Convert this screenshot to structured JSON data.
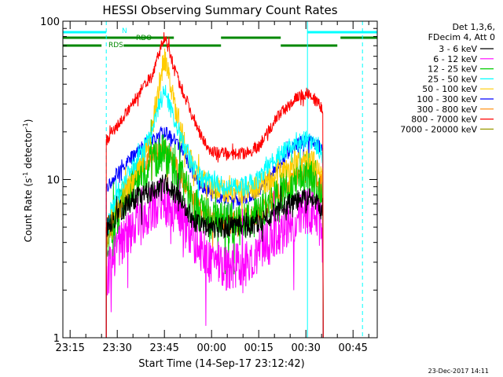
{
  "chart_data": {
    "type": "line",
    "title": "HESSI Observing Summary Count Rates",
    "xlabel": "Start Time (14-Sep-17 23:12:42)",
    "ylabel_main": "Count Rate (s",
    "ylabel_sup": "-1",
    "ylabel_mid": " detector",
    "ylabel_end": ")",
    "y_scale": "log",
    "ylim": [
      1,
      100
    ],
    "y_ticks": [
      {
        "value": 1,
        "label": "1"
      },
      {
        "value": 10,
        "label": "10"
      },
      {
        "value": 100,
        "label": "100"
      }
    ],
    "x_ticks_minutes": [
      {
        "t": -45,
        "label": "23:15"
      },
      {
        "t": -30,
        "label": "23:30"
      },
      {
        "t": -15,
        "label": "23:45"
      },
      {
        "t": 0,
        "label": "00:00"
      },
      {
        "t": 15,
        "label": "00:15"
      },
      {
        "t": 30,
        "label": "00:30"
      },
      {
        "t": 45,
        "label": "00:45"
      }
    ],
    "xlim_minutes": [
      -47.3,
      52.7
    ],
    "data_start_minutes": -33.5,
    "data_end_minutes": 35.5,
    "legend_header": [
      "Det 1,3,6,",
      "FDecim 4, Att 0"
    ],
    "legend_placement": "right",
    "series": [
      {
        "name": "3 - 6 keV",
        "color": "#000000",
        "points": [
          [
            -33,
            5
          ],
          [
            -30,
            6
          ],
          [
            -25,
            7.5
          ],
          [
            -22,
            8
          ],
          [
            -19,
            8.5
          ],
          [
            -17,
            9
          ],
          [
            -15,
            9.5
          ],
          [
            -12,
            8
          ],
          [
            -9,
            7
          ],
          [
            -6,
            5.5
          ],
          [
            -3,
            5.2
          ],
          [
            0,
            5
          ],
          [
            5,
            5
          ],
          [
            10,
            5
          ],
          [
            15,
            5.3
          ],
          [
            18,
            5.8
          ],
          [
            21,
            6.2
          ],
          [
            25,
            7
          ],
          [
            28,
            7.5
          ],
          [
            31,
            7.6
          ],
          [
            34,
            7
          ],
          [
            35.5,
            6.5
          ]
        ]
      },
      {
        "name": "6 - 12 keV",
        "color": "#ff00ff",
        "points": [
          [
            -33,
            2.5
          ],
          [
            -30,
            3.5
          ],
          [
            -25,
            5
          ],
          [
            -22,
            5.8
          ],
          [
            -19,
            6.5
          ],
          [
            -17,
            7
          ],
          [
            -15,
            7.3
          ],
          [
            -12,
            6.5
          ],
          [
            -9,
            5.5
          ],
          [
            -6,
            4.2
          ],
          [
            -3,
            3.5
          ],
          [
            0,
            3
          ],
          [
            5,
            2.8
          ],
          [
            10,
            2.8
          ],
          [
            15,
            3.5
          ],
          [
            18,
            4
          ],
          [
            21,
            4.5
          ],
          [
            25,
            5.2
          ],
          [
            28,
            6
          ],
          [
            31,
            6.3
          ],
          [
            34,
            5.5
          ],
          [
            35.5,
            5
          ]
        ]
      },
      {
        "name": "12 - 25 keV",
        "color": "#00cc00",
        "points": [
          [
            -33,
            4
          ],
          [
            -30,
            6
          ],
          [
            -25,
            9.5
          ],
          [
            -22,
            11
          ],
          [
            -19,
            12.5
          ],
          [
            -17,
            14
          ],
          [
            -15,
            14.5
          ],
          [
            -12,
            12
          ],
          [
            -9,
            9.5
          ],
          [
            -6,
            7
          ],
          [
            -3,
            6
          ],
          [
            0,
            5.5
          ],
          [
            5,
            5.3
          ],
          [
            10,
            5.3
          ],
          [
            15,
            6
          ],
          [
            18,
            7
          ],
          [
            21,
            8
          ],
          [
            25,
            9.5
          ],
          [
            28,
            10.5
          ],
          [
            31,
            11
          ],
          [
            34,
            9.5
          ],
          [
            35.5,
            8.5
          ]
        ]
      },
      {
        "name": "25 - 50 keV",
        "color": "#00ffff",
        "points": [
          [
            -33,
            5.5
          ],
          [
            -30,
            8
          ],
          [
            -25,
            12
          ],
          [
            -22,
            15
          ],
          [
            -19,
            20
          ],
          [
            -17,
            28
          ],
          [
            -15,
            36
          ],
          [
            -14,
            32
          ],
          [
            -12,
            24
          ],
          [
            -9,
            17
          ],
          [
            -6,
            12
          ],
          [
            -3,
            10
          ],
          [
            0,
            9.5
          ],
          [
            5,
            9
          ],
          [
            10,
            9
          ],
          [
            15,
            10
          ],
          [
            18,
            12
          ],
          [
            21,
            14
          ],
          [
            25,
            16
          ],
          [
            28,
            17.5
          ],
          [
            31,
            18
          ],
          [
            34,
            16
          ],
          [
            35.5,
            14
          ]
        ]
      },
      {
        "name": "50 - 100 keV",
        "color": "#ffcc00",
        "points": [
          [
            -33,
            5
          ],
          [
            -30,
            7
          ],
          [
            -25,
            10
          ],
          [
            -22,
            13
          ],
          [
            -19,
            20
          ],
          [
            -17,
            35
          ],
          [
            -15,
            58
          ],
          [
            -14,
            48
          ],
          [
            -12,
            30
          ],
          [
            -9,
            18
          ],
          [
            -6,
            12
          ],
          [
            -3,
            10
          ],
          [
            0,
            9
          ],
          [
            5,
            8.5
          ],
          [
            10,
            8.5
          ],
          [
            15,
            9
          ],
          [
            18,
            10
          ],
          [
            21,
            11
          ],
          [
            25,
            12
          ],
          [
            28,
            13
          ],
          [
            31,
            13.5
          ],
          [
            34,
            12
          ],
          [
            35.5,
            11
          ]
        ]
      },
      {
        "name": "100 - 300 keV",
        "color": "#0000ff",
        "points": [
          [
            -33,
            9
          ],
          [
            -30,
            11
          ],
          [
            -25,
            14
          ],
          [
            -22,
            16
          ],
          [
            -19,
            18
          ],
          [
            -17,
            19
          ],
          [
            -15,
            20
          ],
          [
            -12,
            18
          ],
          [
            -9,
            15
          ],
          [
            -6,
            11
          ],
          [
            -3,
            9
          ],
          [
            0,
            8
          ],
          [
            5,
            7.5
          ],
          [
            10,
            7.5
          ],
          [
            15,
            8.5
          ],
          [
            18,
            10
          ],
          [
            21,
            12
          ],
          [
            25,
            15
          ],
          [
            28,
            17
          ],
          [
            31,
            18
          ],
          [
            34,
            16.5
          ],
          [
            35.5,
            15
          ]
        ]
      },
      {
        "name": "300 - 800 keV",
        "color": "#ff8800",
        "points": [
          [
            -33,
            4.5
          ],
          [
            -30,
            6.5
          ],
          [
            -25,
            10
          ],
          [
            -22,
            12
          ],
          [
            -19,
            14
          ],
          [
            -17,
            15
          ],
          [
            -15,
            15.5
          ],
          [
            -12,
            13
          ],
          [
            -9,
            10
          ],
          [
            -6,
            7.5
          ],
          [
            -3,
            6.2
          ],
          [
            0,
            5.7
          ],
          [
            5,
            5.5
          ],
          [
            10,
            5.5
          ],
          [
            15,
            6
          ],
          [
            18,
            7
          ],
          [
            21,
            8
          ],
          [
            25,
            9.5
          ],
          [
            28,
            10.5
          ],
          [
            31,
            11
          ],
          [
            34,
            9.8
          ],
          [
            35.5,
            9
          ]
        ]
      },
      {
        "name": "800 - 7000 keV",
        "color": "#ff0000",
        "points": [
          [
            -33,
            18
          ],
          [
            -30,
            22
          ],
          [
            -25,
            30
          ],
          [
            -22,
            38
          ],
          [
            -19,
            45
          ],
          [
            -17,
            60
          ],
          [
            -15,
            80
          ],
          [
            -14,
            70
          ],
          [
            -12,
            50
          ],
          [
            -9,
            35
          ],
          [
            -6,
            25
          ],
          [
            -3,
            18
          ],
          [
            0,
            15
          ],
          [
            5,
            14.5
          ],
          [
            10,
            14.5
          ],
          [
            15,
            16
          ],
          [
            18,
            20
          ],
          [
            21,
            25
          ],
          [
            25,
            30
          ],
          [
            28,
            34
          ],
          [
            31,
            35
          ],
          [
            34,
            30
          ],
          [
            35.5,
            28
          ]
        ]
      },
      {
        "name": "7000 - 20000 keV",
        "color": "#999900",
        "points": []
      }
    ],
    "annotations": [
      {
        "text": "N",
        "color": "#00ffff"
      },
      {
        "text": "RDO",
        "color": "#008800"
      },
      {
        "text": "RDS",
        "color": "#008800"
      }
    ],
    "status_bars": {
      "night": {
        "color": "#00ffff",
        "segments": [
          [
            -47.3,
            -33.5
          ],
          [
            30.5,
            52.7
          ]
        ]
      },
      "rdo": {
        "color": "#008800",
        "segments": [
          [
            -47.3,
            -12
          ],
          [
            3,
            22
          ],
          [
            41,
            52.7
          ]
        ]
      },
      "rds": {
        "color": "#008800",
        "segments": [
          [
            -47.3,
            -35
          ],
          [
            -28,
            3
          ],
          [
            22,
            40
          ]
        ]
      }
    },
    "vlines_solid": {
      "color": "#00ffff",
      "t": [
        -47.3,
        30.5
      ]
    },
    "vlines_dashed": {
      "color": "#00ffff",
      "t": [
        -33.5,
        48
      ]
    },
    "grid": false
  },
  "footer": {
    "timestamp": "23-Dec-2017 14:11"
  }
}
